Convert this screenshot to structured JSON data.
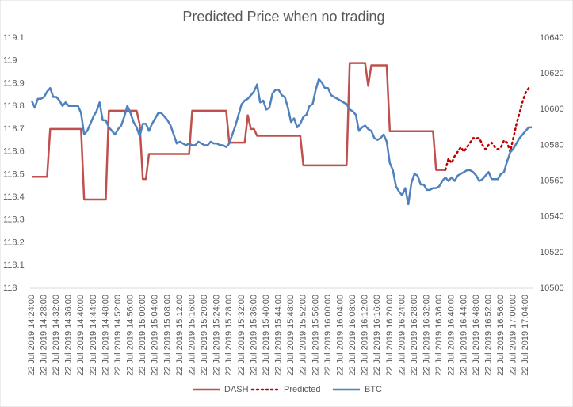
{
  "chart_data": {
    "type": "line",
    "title": "Predicted Price when no trading",
    "categories": [
      "22 Jul 2019 14:24:00",
      null,
      null,
      null,
      "22 Jul 2019 14:28:00",
      null,
      null,
      null,
      "22 Jul 2019 14:32:00",
      null,
      null,
      null,
      "22 Jul 2019 14:36:00",
      null,
      null,
      null,
      "22 Jul 2019 14:40:00",
      null,
      null,
      null,
      "22 Jul 2019 14:44:00",
      null,
      null,
      null,
      "22 Jul 2019 14:48:00",
      null,
      null,
      null,
      "22 Jul 2019 14:52:00",
      null,
      null,
      null,
      "22 Jul 2019 14:56:00",
      null,
      null,
      null,
      "22 Jul 2019 15:00:00",
      null,
      null,
      null,
      "22 Jul 2019 15:04:00",
      null,
      null,
      null,
      "22 Jul 2019 15:08:00",
      null,
      null,
      null,
      "22 Jul 2019 15:12:00",
      null,
      null,
      null,
      "22 Jul 2019 15:16:00",
      null,
      null,
      null,
      "22 Jul 2019 15:20:00",
      null,
      null,
      null,
      "22 Jul 2019 15:24:00",
      null,
      null,
      null,
      "22 Jul 2019 15:28:00",
      null,
      null,
      null,
      "22 Jul 2019 15:32:00",
      null,
      null,
      null,
      "22 Jul 2019 15:36:00",
      null,
      null,
      null,
      "22 Jul 2019 15:40:00",
      null,
      null,
      null,
      "22 Jul 2019 15:44:00",
      null,
      null,
      null,
      "22 Jul 2019 15:48:00",
      null,
      null,
      null,
      "22 Jul 2019 15:52:00",
      null,
      null,
      null,
      "22 Jul 2019 15:56:00",
      null,
      null,
      null,
      "22 Jul 2019 16:00:00",
      null,
      null,
      null,
      "22 Jul 2019 16:04:00",
      null,
      null,
      null,
      "22 Jul 2019 16:08:00",
      null,
      null,
      null,
      "22 Jul 2019 16:12:00",
      null,
      null,
      null,
      "22 Jul 2019 16:16:00",
      null,
      null,
      null,
      "22 Jul 2019 16:20:00",
      null,
      null,
      null,
      "22 Jul 2019 16:24:00",
      null,
      null,
      null,
      "22 Jul 2019 16:28:00",
      null,
      null,
      null,
      "22 Jul 2019 16:32:00",
      null,
      null,
      null,
      "22 Jul 2019 16:36:00",
      null,
      null,
      null,
      "22 Jul 2019 16:40:00",
      null,
      null,
      null,
      "22 Jul 2019 16:44:00",
      null,
      null,
      null,
      "22 Jul 2019 16:48:00",
      null,
      null,
      null,
      "22 Jul 2019 16:52:00",
      null,
      null,
      null,
      "22 Jul 2019 16:56:00",
      null,
      null,
      null,
      "22 Jul 2019 17:00:00",
      null,
      null,
      null,
      "22 Jul 2019 17:04:00",
      null,
      null
    ],
    "series": [
      {
        "name": "DASH",
        "color": "#C0504D",
        "line_style": "solid",
        "values": [
          118.49,
          118.49,
          118.49,
          118.49,
          118.49,
          118.49,
          118.7,
          118.7,
          118.7,
          118.7,
          118.7,
          118.7,
          118.7,
          118.7,
          118.7,
          118.7,
          118.7,
          118.39,
          118.39,
          118.39,
          118.39,
          118.39,
          118.39,
          118.39,
          118.39,
          118.78,
          118.78,
          118.78,
          118.78,
          118.78,
          118.78,
          118.78,
          118.78,
          118.78,
          118.78,
          118.72,
          118.48,
          118.48,
          118.59,
          118.59,
          118.59,
          118.59,
          118.59,
          118.59,
          118.59,
          118.59,
          118.59,
          118.59,
          118.59,
          118.59,
          118.59,
          118.59,
          118.78,
          118.78,
          118.78,
          118.78,
          118.78,
          118.78,
          118.78,
          118.78,
          118.78,
          118.78,
          118.78,
          118.78,
          118.64,
          118.64,
          118.64,
          118.64,
          118.64,
          118.64,
          118.76,
          118.7,
          118.7,
          118.67,
          118.67,
          118.67,
          118.67,
          118.67,
          118.67,
          118.67,
          118.67,
          118.67,
          118.67,
          118.67,
          118.67,
          118.67,
          118.67,
          118.67,
          118.54,
          118.54,
          118.54,
          118.54,
          118.54,
          118.54,
          118.54,
          118.54,
          118.54,
          118.54,
          118.54,
          118.54,
          118.54,
          118.54,
          118.54,
          118.99,
          118.99,
          118.99,
          118.99,
          118.99,
          118.99,
          118.89,
          118.98,
          118.98,
          118.98,
          118.98,
          118.98,
          118.98,
          118.69,
          118.69,
          118.69,
          118.69,
          118.69,
          118.69,
          118.69,
          118.69,
          118.69,
          118.69,
          118.69,
          118.69,
          118.69,
          118.69,
          118.69,
          118.52,
          118.52,
          118.52,
          118.52,
          null,
          null,
          null,
          null,
          null,
          null,
          null,
          null,
          null,
          null,
          null,
          null,
          null,
          null,
          null,
          null,
          null,
          null,
          null,
          null,
          null,
          null,
          null,
          null,
          null,
          null,
          null,
          null
        ]
      },
      {
        "name": "Predicted",
        "color": "#C00000",
        "line_style": "dotted",
        "values": [
          null,
          null,
          null,
          null,
          null,
          null,
          null,
          null,
          null,
          null,
          null,
          null,
          null,
          null,
          null,
          null,
          null,
          null,
          null,
          null,
          null,
          null,
          null,
          null,
          null,
          null,
          null,
          null,
          null,
          null,
          null,
          null,
          null,
          null,
          null,
          null,
          null,
          null,
          null,
          null,
          null,
          null,
          null,
          null,
          null,
          null,
          null,
          null,
          null,
          null,
          null,
          null,
          null,
          null,
          null,
          null,
          null,
          null,
          null,
          null,
          null,
          null,
          null,
          null,
          null,
          null,
          null,
          null,
          null,
          null,
          null,
          null,
          null,
          null,
          null,
          null,
          null,
          null,
          null,
          null,
          null,
          null,
          null,
          null,
          null,
          null,
          null,
          null,
          null,
          null,
          null,
          null,
          null,
          null,
          null,
          null,
          null,
          null,
          null,
          null,
          null,
          null,
          null,
          null,
          null,
          null,
          null,
          null,
          null,
          null,
          null,
          null,
          null,
          null,
          null,
          null,
          null,
          null,
          null,
          null,
          null,
          null,
          null,
          null,
          null,
          null,
          null,
          null,
          null,
          null,
          null,
          null,
          null,
          null,
          118.52,
          118.57,
          118.55,
          118.58,
          118.6,
          118.62,
          118.6,
          118.62,
          118.64,
          118.66,
          118.66,
          118.66,
          118.63,
          118.61,
          118.63,
          118.64,
          118.62,
          118.61,
          118.62,
          118.65,
          118.64,
          118.6,
          118.66,
          118.72,
          118.77,
          118.82,
          118.86,
          118.88,
          null
        ]
      },
      {
        "name": "BTC",
        "color": "#4F81BD",
        "line_style": "solid",
        "axis": "y2",
        "values": [
          10605,
          10601,
          10606,
          10606,
          10607,
          10610,
          10612,
          10607,
          10607,
          10605,
          10602,
          10604,
          10602,
          10602,
          10602,
          10602,
          10598,
          10586,
          10588,
          10592,
          10596,
          10599,
          10604,
          10594,
          10594,
          10590,
          10588,
          10586,
          10589,
          10591,
          10596,
          10602,
          10598,
          10593,
          10590,
          10585,
          10592,
          10592,
          10588,
          10592,
          10595,
          10598,
          10598,
          10596,
          10594,
          10591,
          10586,
          10581,
          10582,
          10581,
          10580,
          10581,
          10580,
          10580,
          10582,
          10581,
          10580,
          10580,
          10582,
          10581,
          10581,
          10580,
          10580,
          10579,
          10581,
          10586,
          10591,
          10597,
          10603,
          10605,
          10606,
          10608,
          10610,
          10614,
          10604,
          10605,
          10600,
          10601,
          10609,
          10611,
          10611,
          10608,
          10607,
          10601,
          10593,
          10595,
          10590,
          10592,
          10596,
          10597,
          10602,
          10603,
          10611,
          10617,
          10615,
          10612,
          10612,
          10608,
          10607,
          10606,
          10605,
          10604,
          10603,
          10600,
          10599,
          10597,
          10588,
          10590,
          10591,
          10589,
          10588,
          10584,
          10583,
          10584,
          10586,
          10582,
          10570,
          10566,
          10557,
          10554,
          10552,
          10556,
          10547,
          10559,
          10564,
          10563,
          10558,
          10558,
          10555,
          10555,
          10556,
          10556,
          10557,
          10560,
          10562,
          10560,
          10562,
          10560,
          10563,
          10564,
          10565,
          10566,
          10566,
          10565,
          10563,
          10560,
          10561,
          10563,
          10565,
          10561,
          10561,
          10561,
          10564,
          10565,
          10571,
          10576,
          10578,
          10581,
          10584,
          10586,
          10588,
          10590,
          10590
        ]
      }
    ],
    "ylim": [
      118,
      119.1
    ],
    "yticks": [
      118,
      118.1,
      118.2,
      118.3,
      118.4,
      118.5,
      118.6,
      118.7,
      118.8,
      118.9,
      119,
      119.1
    ],
    "y2lim": [
      10500,
      10640
    ],
    "y2ticks": [
      10500,
      10520,
      10540,
      10560,
      10580,
      10600,
      10620,
      10640
    ],
    "grid": false,
    "legend": "bottom"
  }
}
